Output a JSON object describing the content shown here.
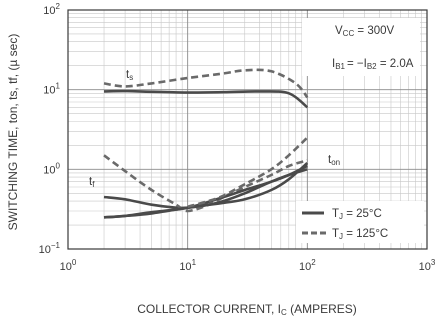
{
  "chart_data": {
    "type": "line",
    "xscale": "log",
    "yscale": "log",
    "xlim": [
      1,
      1000
    ],
    "ylim": [
      0.1,
      100
    ],
    "grid": true,
    "xlabel": "COLLECTOR CURRENT, I",
    "xlabel_sub": "C",
    "xlabel_suffix": " (AMPERES)",
    "ylabel": "SWITCHING TIME, ton, ts, tf, (µ sec)",
    "xticks": [
      {
        "value": 1,
        "base": "10",
        "exp": "0"
      },
      {
        "value": 10,
        "base": "10",
        "exp": "1"
      },
      {
        "value": 100,
        "base": "10",
        "exp": "2"
      },
      {
        "value": 1000,
        "base": "10",
        "exp": "3"
      }
    ],
    "yticks": [
      {
        "value": 0.1,
        "base": "10",
        "exp": "−1"
      },
      {
        "value": 1,
        "base": "10",
        "exp": "0"
      },
      {
        "value": 10,
        "base": "10",
        "exp": "1"
      },
      {
        "value": 100,
        "base": "10",
        "exp": "2"
      }
    ],
    "conditions": {
      "vcc": "V",
      "vcc_sub": "CC",
      "vcc_value": " = 300V",
      "ib_a": "I",
      "ib_a_sub": "B1",
      "ib_mid": "= −I",
      "ib_b_sub": "B2",
      "ib_value": " = 2.0A"
    },
    "curve_labels": {
      "ts": "t",
      "ts_sub": "s",
      "tf": "t",
      "tf_sub": "f",
      "ton": "t",
      "ton_sub": "on"
    },
    "legend": {
      "placement": "bottom-right",
      "items": [
        {
          "symbol": "T",
          "sub": "J",
          "text": " = 25°C",
          "style": "solid"
        },
        {
          "symbol": "T",
          "sub": "J",
          "text": " = 125°C",
          "style": "dashed"
        }
      ]
    },
    "series": [
      {
        "curve": "ts",
        "style": "solid",
        "x": [
          2,
          3,
          5,
          10,
          20,
          40,
          70,
          100
        ],
        "y": [
          9.5,
          9.6,
          9.4,
          9.2,
          9.3,
          9.5,
          9.0,
          6.0
        ]
      },
      {
        "curve": "ts",
        "style": "dashed",
        "x": [
          2,
          3,
          5,
          10,
          20,
          30,
          50,
          80,
          100
        ],
        "y": [
          12,
          11,
          12,
          14,
          16,
          17.5,
          17,
          12,
          8
        ]
      },
      {
        "curve": "tf",
        "style": "solid",
        "x": [
          2,
          3,
          5,
          8,
          10,
          15,
          20,
          30,
          50,
          70,
          100
        ],
        "y": [
          0.45,
          0.42,
          0.36,
          0.33,
          0.33,
          0.36,
          0.4,
          0.5,
          0.7,
          0.85,
          1.0
        ]
      },
      {
        "curve": "tf",
        "style": "dashed",
        "x": [
          2,
          3,
          5,
          8,
          10,
          15,
          20,
          30,
          50,
          70,
          100
        ],
        "y": [
          1.5,
          0.95,
          0.55,
          0.36,
          0.3,
          0.36,
          0.45,
          0.6,
          0.85,
          1.1,
          1.3
        ]
      },
      {
        "curve": "ton",
        "style": "solid",
        "x": [
          2,
          3,
          5,
          10,
          20,
          30,
          50,
          70,
          100
        ],
        "y": [
          0.25,
          0.26,
          0.29,
          0.33,
          0.45,
          0.55,
          0.7,
          0.85,
          1.1
        ]
      },
      {
        "curve": "ton",
        "style": "solid",
        "x": [
          2,
          3,
          5,
          10,
          20,
          30,
          50,
          70,
          100
        ],
        "y": [
          0.25,
          0.26,
          0.28,
          0.33,
          0.38,
          0.42,
          0.55,
          0.75,
          1.2
        ]
      },
      {
        "curve": "ton",
        "style": "dashed",
        "x": [
          10,
          15,
          20,
          30,
          50,
          70,
          100
        ],
        "y": [
          0.34,
          0.4,
          0.47,
          0.65,
          1.0,
          1.5,
          2.5
        ]
      }
    ]
  }
}
